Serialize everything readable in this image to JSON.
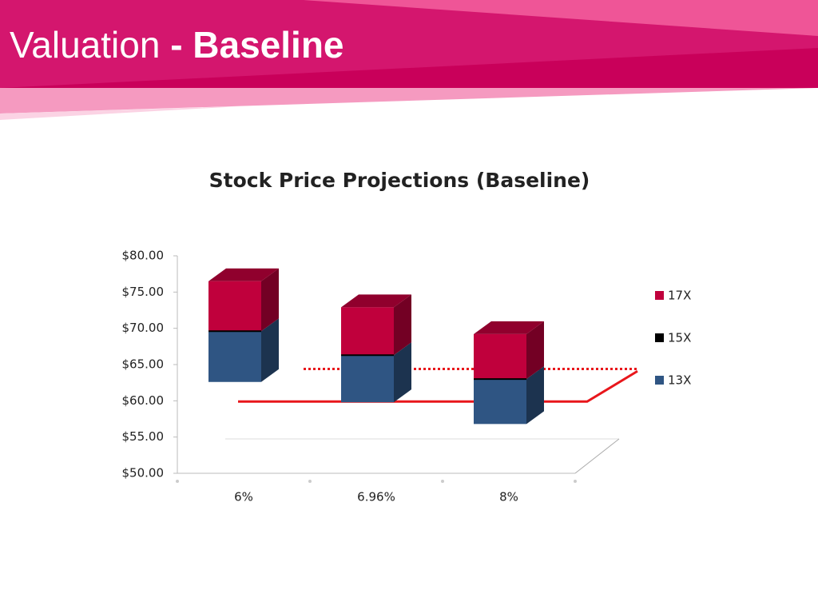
{
  "slide": {
    "title": "Valuation",
    "title_emphasis": "- Baseline"
  },
  "chart_data": {
    "type": "floating_bar",
    "title": "Stock Price Projections (Baseline)",
    "categories": [
      "6%",
      "6.96%",
      "8%"
    ],
    "series": [
      {
        "name": "17X",
        "color": "#c0003c",
        "values": [
          76.5,
          72.9,
          69.2
        ]
      },
      {
        "name": "15X",
        "color": "#000000",
        "values": [
          69.6,
          66.3,
          63.0
        ]
      },
      {
        "name": "13X",
        "color": "#2f5583",
        "values": [
          62.6,
          59.8,
          56.8
        ]
      }
    ],
    "lines": [
      {
        "value": 59.9,
        "color": "#e8161b",
        "style": "solid"
      },
      {
        "value": 64.4,
        "color": "#e8161b",
        "style": "dotted"
      }
    ],
    "ylim": [
      50,
      80
    ],
    "yticks": [
      {
        "value": 50,
        "label": "$50.00"
      },
      {
        "value": 55,
        "label": "$55.00"
      },
      {
        "value": 60,
        "label": "$60.00"
      },
      {
        "value": 65,
        "label": "$65.00"
      },
      {
        "value": 70,
        "label": "$70.00"
      },
      {
        "value": 75,
        "label": "$75.00"
      },
      {
        "value": 80,
        "label": "$80.00"
      }
    ],
    "legend": "right"
  }
}
